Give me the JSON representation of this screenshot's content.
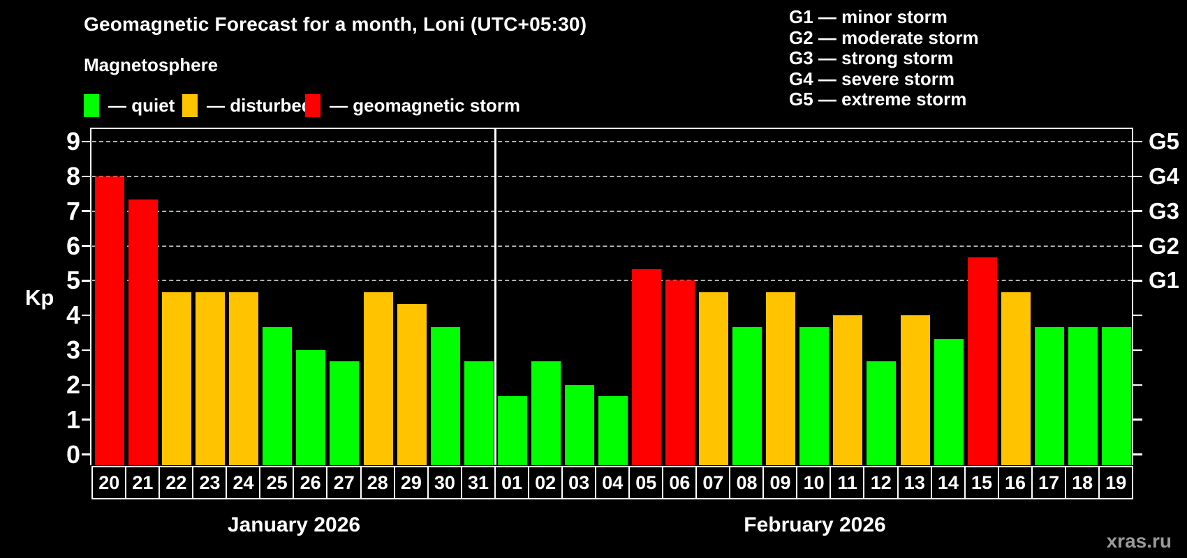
{
  "title": "Geomagnetic Forecast for a month, Loni (UTC+05:30)",
  "subtitle": "Magnetosphere",
  "legend": {
    "items": [
      {
        "key": "quiet",
        "label": "— quiet"
      },
      {
        "key": "disturbed",
        "label": "— disturbed"
      },
      {
        "key": "storm",
        "label": "— geomagnetic storm"
      }
    ]
  },
  "g_legend": {
    "lines": [
      "G1 — minor storm",
      "G2 — moderate storm",
      "G3 — strong storm",
      "G4 — severe storm",
      "G5 — extreme storm"
    ]
  },
  "watermark": "xras.ru",
  "colors": {
    "background": "#000000",
    "text": "#ffffff",
    "grid": "#b0b0b0",
    "axis": "#ffffff",
    "watermark": "#9a9a9a",
    "quiet": "#00ff00",
    "disturbed": "#ffc300",
    "storm": "#ff0000"
  },
  "chart_data": {
    "type": "bar",
    "title": "Geomagnetic Forecast for a month, Loni (UTC+05:30)",
    "ylabel": "Kp",
    "ylim": [
      -0.3,
      9.4
    ],
    "yticks": [
      0,
      1,
      2,
      3,
      4,
      5,
      6,
      7,
      8,
      9
    ],
    "gridlines_kp": [
      5,
      6,
      7,
      8,
      9
    ],
    "grid_style": "dashed horizontal",
    "legend_position": "top-left",
    "right_axis": [
      {
        "label": "G1",
        "kp": 5
      },
      {
        "label": "G2",
        "kp": 6
      },
      {
        "label": "G3",
        "kp": 7
      },
      {
        "label": "G4",
        "kp": 8
      },
      {
        "label": "G5",
        "kp": 9
      }
    ],
    "months": [
      {
        "label": "January 2026",
        "days": [
          {
            "date": "20",
            "kp": 8.0,
            "status": "storm"
          },
          {
            "date": "21",
            "kp": 7.33,
            "status": "storm"
          },
          {
            "date": "22",
            "kp": 4.67,
            "status": "disturbed"
          },
          {
            "date": "23",
            "kp": 4.67,
            "status": "disturbed"
          },
          {
            "date": "24",
            "kp": 4.67,
            "status": "disturbed"
          },
          {
            "date": "25",
            "kp": 3.67,
            "status": "quiet"
          },
          {
            "date": "26",
            "kp": 3.0,
            "status": "quiet"
          },
          {
            "date": "27",
            "kp": 2.67,
            "status": "quiet"
          },
          {
            "date": "28",
            "kp": 4.67,
            "status": "disturbed"
          },
          {
            "date": "29",
            "kp": 4.33,
            "status": "disturbed"
          },
          {
            "date": "30",
            "kp": 3.67,
            "status": "quiet"
          },
          {
            "date": "31",
            "kp": 2.67,
            "status": "quiet"
          }
        ]
      },
      {
        "label": "February 2026",
        "days": [
          {
            "date": "01",
            "kp": 1.67,
            "status": "quiet"
          },
          {
            "date": "02",
            "kp": 2.67,
            "status": "quiet"
          },
          {
            "date": "03",
            "kp": 2.0,
            "status": "quiet"
          },
          {
            "date": "04",
            "kp": 1.67,
            "status": "quiet"
          },
          {
            "date": "05",
            "kp": 5.33,
            "status": "storm"
          },
          {
            "date": "06",
            "kp": 5.0,
            "status": "storm"
          },
          {
            "date": "07",
            "kp": 4.67,
            "status": "disturbed"
          },
          {
            "date": "08",
            "kp": 3.67,
            "status": "quiet"
          },
          {
            "date": "09",
            "kp": 4.67,
            "status": "disturbed"
          },
          {
            "date": "10",
            "kp": 3.67,
            "status": "quiet"
          },
          {
            "date": "11",
            "kp": 4.0,
            "status": "disturbed"
          },
          {
            "date": "12",
            "kp": 2.67,
            "status": "quiet"
          },
          {
            "date": "13",
            "kp": 4.0,
            "status": "disturbed"
          },
          {
            "date": "14",
            "kp": 3.33,
            "status": "quiet"
          },
          {
            "date": "15",
            "kp": 5.67,
            "status": "storm"
          },
          {
            "date": "16",
            "kp": 4.67,
            "status": "disturbed"
          },
          {
            "date": "17",
            "kp": 3.67,
            "status": "quiet"
          },
          {
            "date": "18",
            "kp": 3.67,
            "status": "quiet"
          },
          {
            "date": "19",
            "kp": 3.67,
            "status": "quiet"
          }
        ]
      }
    ]
  }
}
